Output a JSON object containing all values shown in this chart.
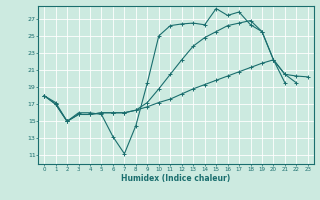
{
  "xlabel": "Humidex (Indice chaleur)",
  "bg_color": "#cceae0",
  "grid_color": "#ffffff",
  "line_color": "#1a6e6e",
  "xlim": [
    -0.5,
    23.5
  ],
  "ylim": [
    10.0,
    28.5
  ],
  "yticks": [
    11,
    13,
    15,
    17,
    19,
    21,
    23,
    25,
    27
  ],
  "xticks": [
    0,
    1,
    2,
    3,
    4,
    5,
    6,
    7,
    8,
    9,
    10,
    11,
    12,
    13,
    14,
    15,
    16,
    17,
    18,
    19,
    20,
    21,
    22,
    23
  ],
  "line1_x": [
    0,
    1,
    2,
    3,
    4,
    5,
    6,
    7,
    8,
    9,
    10,
    11,
    12,
    13,
    14,
    15,
    16,
    17,
    18,
    19,
    20,
    21,
    22,
    23
  ],
  "line1_y": [
    18.0,
    17.2,
    15.0,
    16.0,
    16.0,
    15.8,
    13.2,
    11.2,
    14.5,
    19.5,
    25.0,
    26.2,
    26.4,
    26.5,
    26.3,
    28.2,
    27.4,
    27.8,
    26.3,
    25.5,
    22.2,
    20.5,
    19.5,
    null
  ],
  "line2_x": [
    0,
    1,
    2,
    3,
    4,
    5,
    6,
    7,
    8,
    9,
    10,
    11,
    12,
    13,
    14,
    15,
    16,
    17,
    18,
    19,
    20,
    21,
    22,
    23
  ],
  "line2_y": [
    18.0,
    17.0,
    15.0,
    15.8,
    15.8,
    16.0,
    16.0,
    16.0,
    16.3,
    16.7,
    17.2,
    17.6,
    18.2,
    18.8,
    19.3,
    19.8,
    20.3,
    20.8,
    21.3,
    21.8,
    22.2,
    20.5,
    20.3,
    20.2
  ],
  "line3_x": [
    0,
    1,
    2,
    3,
    4,
    5,
    6,
    7,
    8,
    9,
    10,
    11,
    12,
    13,
    14,
    15,
    16,
    17,
    18,
    19,
    20,
    21,
    22,
    23
  ],
  "line3_y": [
    18.0,
    17.0,
    15.0,
    15.8,
    15.8,
    16.0,
    16.0,
    16.0,
    16.3,
    17.2,
    18.8,
    20.5,
    22.2,
    23.8,
    24.8,
    25.5,
    26.2,
    26.5,
    26.8,
    25.5,
    22.2,
    19.5,
    null,
    null
  ]
}
